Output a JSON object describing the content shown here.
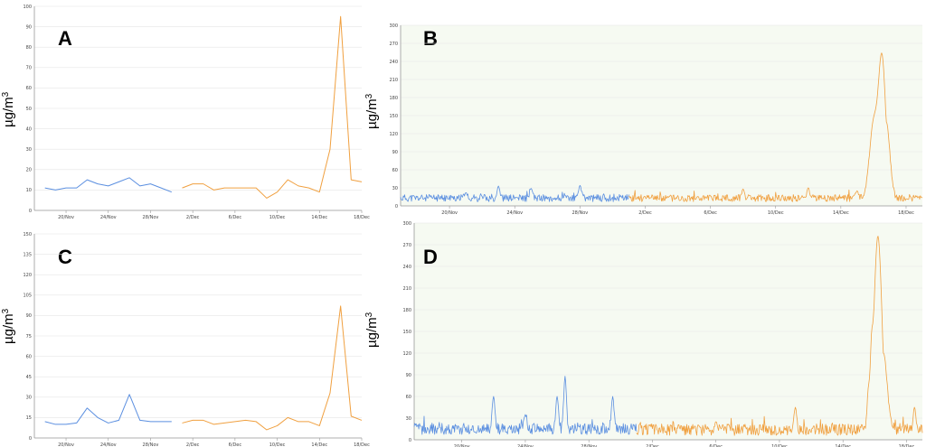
{
  "figure": {
    "x_tick_labels": [
      "20/Nov",
      "24/Nov",
      "28/Nov",
      "2/Dec",
      "6/Dec",
      "10/Dec",
      "14/Dec",
      "18/Dec"
    ],
    "ylabel_text": "µg/m",
    "ylabel_sup": "3",
    "colors": {
      "nov": "#5b8fe0",
      "dec": "#f0a040",
      "grid": "#e6e6e6",
      "axis": "#999999",
      "green_bg": "#f6faf2"
    }
  },
  "chart_data": [
    {
      "panel": "A",
      "type": "line",
      "ylim": [
        0,
        100
      ],
      "yticks": [
        0,
        10,
        20,
        30,
        40,
        50,
        60,
        70,
        80,
        90,
        100
      ],
      "xlim_days": [
        "17/Nov",
        "18/Dec"
      ],
      "series": [
        {
          "color_key": "nov",
          "points": [
            [
              "18/Nov",
              11
            ],
            [
              "19/Nov",
              10
            ],
            [
              "20/Nov",
              11
            ],
            [
              "21/Nov",
              11
            ],
            [
              "22/Nov",
              15
            ],
            [
              "23/Nov",
              13
            ],
            [
              "24/Nov",
              12
            ],
            [
              "25/Nov",
              14
            ],
            [
              "26/Nov",
              16
            ],
            [
              "27/Nov",
              12
            ],
            [
              "28/Nov",
              13
            ],
            [
              "29/Nov",
              11
            ],
            [
              "30/Nov",
              9
            ]
          ]
        },
        {
          "color_key": "dec",
          "points": [
            [
              "1/Dec",
              11
            ],
            [
              "2/Dec",
              13
            ],
            [
              "3/Dec",
              13
            ],
            [
              "4/Dec",
              10
            ],
            [
              "5/Dec",
              11
            ],
            [
              "6/Dec",
              11
            ],
            [
              "7/Dec",
              11
            ],
            [
              "8/Dec",
              11
            ],
            [
              "9/Dec",
              6
            ],
            [
              "10/Dec",
              9
            ],
            [
              "11/Dec",
              15
            ],
            [
              "12/Dec",
              12
            ],
            [
              "13/Dec",
              11
            ],
            [
              "14/Dec",
              9
            ],
            [
              "15/Dec",
              30
            ],
            [
              "16/Dec",
              95
            ],
            [
              "17/Dec",
              15
            ],
            [
              "18/Dec",
              14
            ]
          ]
        }
      ]
    },
    {
      "panel": "B",
      "type": "line",
      "ylim": [
        0,
        300
      ],
      "yticks": [
        0,
        30,
        60,
        90,
        120,
        150,
        180,
        210,
        240,
        270,
        300
      ],
      "xlim_days": [
        "17/Nov",
        "19/Dec"
      ],
      "series": [
        {
          "color_key": "nov",
          "start": "17/Nov",
          "end": "1/Dec",
          "base": 13,
          "noise": 6,
          "seed": 11,
          "spikes": [
            [
              "23/Nov",
              33
            ],
            [
              "25/Nov",
              29
            ],
            [
              "28/Nov",
              34
            ],
            [
              "21/Nov",
              22
            ]
          ]
        },
        {
          "color_key": "dec",
          "start": "1/Dec",
          "end": "19/Dec",
          "base": 13,
          "noise": 6,
          "seed": 23,
          "spikes": [
            [
              "8/Dec",
              28
            ],
            [
              "12/Dec",
              30
            ],
            [
              "15/Dec",
              25
            ],
            [
              "16/Dec",
              130
            ],
            [
              "16.5/Dec",
              254
            ],
            [
              "16.7/Dec",
              140
            ]
          ]
        }
      ]
    },
    {
      "panel": "C",
      "type": "line",
      "ylim": [
        0,
        150
      ],
      "yticks": [
        0,
        15,
        30,
        45,
        60,
        75,
        90,
        105,
        120,
        135,
        150
      ],
      "xlim_days": [
        "17/Nov",
        "18/Dec"
      ],
      "series": [
        {
          "color_key": "nov",
          "points": [
            [
              "18/Nov",
              12
            ],
            [
              "19/Nov",
              10
            ],
            [
              "20/Nov",
              10
            ],
            [
              "21/Nov",
              11
            ],
            [
              "22/Nov",
              22
            ],
            [
              "23/Nov",
              15
            ],
            [
              "24/Nov",
              11
            ],
            [
              "25/Nov",
              13
            ],
            [
              "26/Nov",
              32
            ],
            [
              "27/Nov",
              13
            ],
            [
              "28/Nov",
              12
            ],
            [
              "29/Nov",
              12
            ],
            [
              "30/Nov",
              12
            ]
          ]
        },
        {
          "color_key": "dec",
          "points": [
            [
              "1/Dec",
              11
            ],
            [
              "2/Dec",
              13
            ],
            [
              "3/Dec",
              13
            ],
            [
              "4/Dec",
              10
            ],
            [
              "5/Dec",
              11
            ],
            [
              "6/Dec",
              12
            ],
            [
              "7/Dec",
              13
            ],
            [
              "8/Dec",
              12
            ],
            [
              "9/Dec",
              6
            ],
            [
              "10/Dec",
              9
            ],
            [
              "11/Dec",
              15
            ],
            [
              "12/Dec",
              12
            ],
            [
              "13/Dec",
              12
            ],
            [
              "14/Dec",
              9
            ],
            [
              "15/Dec",
              33
            ],
            [
              "16/Dec",
              97
            ],
            [
              "17/Dec",
              16
            ],
            [
              "18/Dec",
              13
            ]
          ]
        }
      ]
    },
    {
      "panel": "D",
      "type": "line",
      "ylim": [
        0,
        300
      ],
      "yticks": [
        0,
        30,
        60,
        90,
        120,
        150,
        180,
        210,
        240,
        270,
        300
      ],
      "xlim_days": [
        "17/Nov",
        "19/Dec"
      ],
      "series": [
        {
          "color_key": "nov",
          "start": "17/Nov",
          "end": "1/Dec",
          "base": 15,
          "noise": 8,
          "seed": 37,
          "spikes": [
            [
              "22/Nov",
              60
            ],
            [
              "24/Nov",
              35
            ],
            [
              "26/Nov",
              60
            ],
            [
              "26.5/Nov",
              88
            ],
            [
              "29.5/Nov",
              60
            ]
          ]
        },
        {
          "color_key": "dec",
          "start": "1/Dec",
          "end": "19/Dec",
          "base": 14,
          "noise": 8,
          "seed": 51,
          "spikes": [
            [
              "6/Dec",
              25
            ],
            [
              "11/Dec",
              45
            ],
            [
              "15.6/Dec",
              60
            ],
            [
              "15.8/Dec",
              100
            ],
            [
              "16.2/Dec",
              282
            ],
            [
              "16.5/Dec",
              120
            ],
            [
              "18.5/Dec",
              45
            ]
          ]
        }
      ]
    }
  ]
}
